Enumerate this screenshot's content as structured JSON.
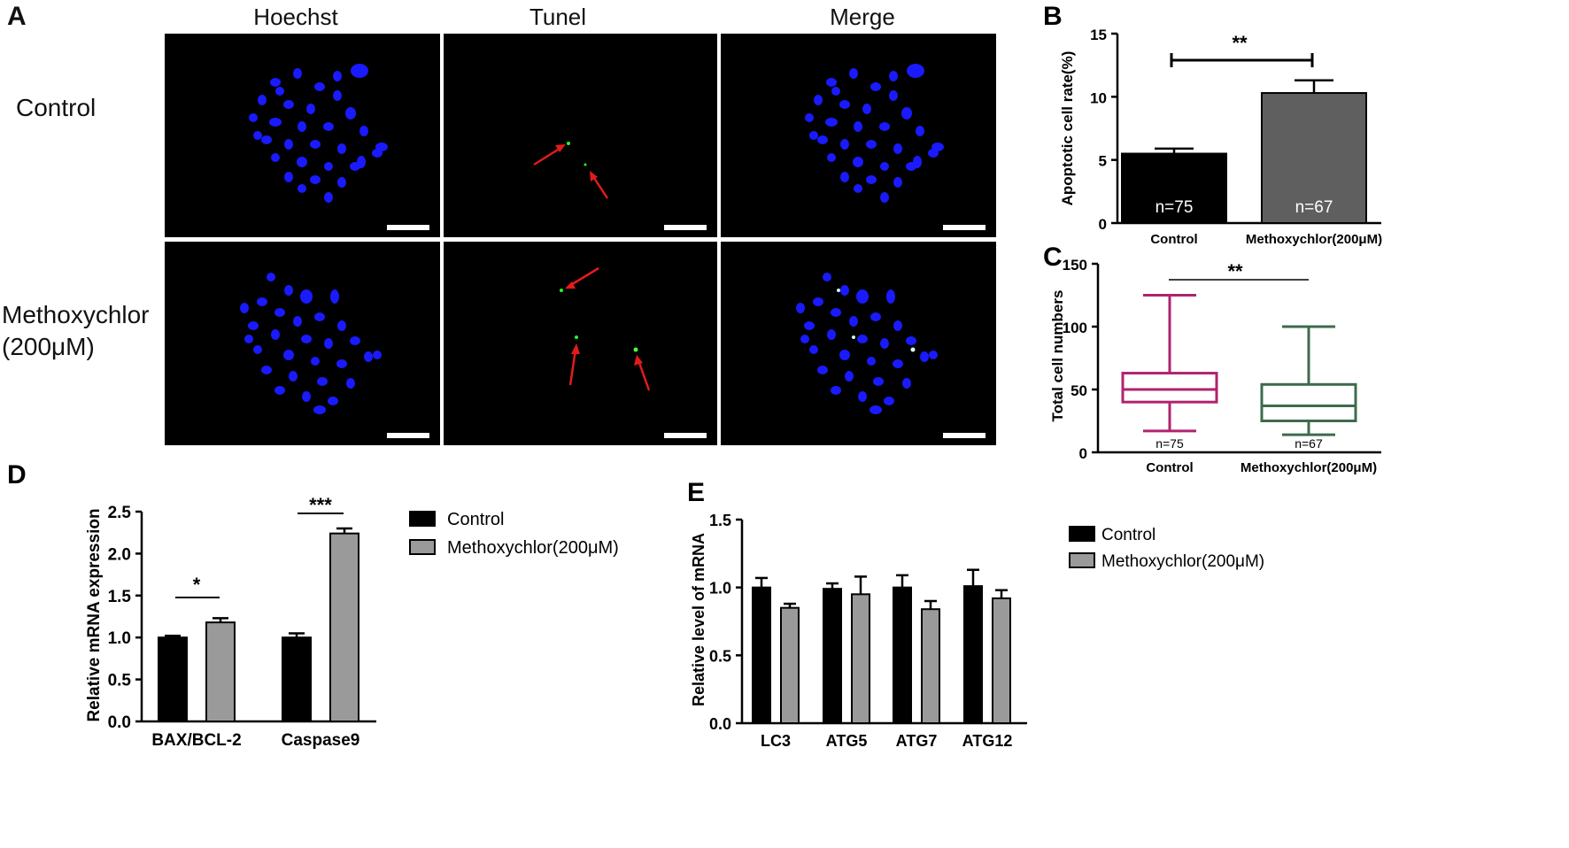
{
  "panelA": {
    "letter": "A",
    "columns": [
      "Hoechst",
      "Tunel",
      "Merge"
    ],
    "rows": [
      "Control",
      "Methoxychlor\n(200μM)"
    ]
  },
  "chart_data": [
    {
      "panel": "B",
      "type": "bar",
      "categories": [
        "Control",
        "Methoxychlor(200μM)"
      ],
      "values": [
        5.5,
        10.3
      ],
      "errors": [
        0.4,
        1.0
      ],
      "bar_labels": [
        "n=75",
        "n=67"
      ],
      "ylabel": "Apoptotic cell rate(%)",
      "ylim": [
        0,
        15
      ],
      "yticks": [
        0,
        5,
        10,
        15
      ],
      "significance": "**",
      "colors": [
        "#000000",
        "#5f5f5f"
      ]
    },
    {
      "panel": "C",
      "type": "box",
      "categories": [
        "Control",
        "Methoxychlor(200μM)"
      ],
      "boxes": [
        {
          "min": 17,
          "q1": 40,
          "median": 50,
          "q3": 63,
          "max": 125,
          "n_label": "n=75",
          "color": "#b0236f"
        },
        {
          "min": 14,
          "q1": 25,
          "median": 37,
          "q3": 54,
          "max": 100,
          "n_label": "n=67",
          "color": "#3d6b4c"
        }
      ],
      "ylabel": "Total cell numbers",
      "ylim": [
        0,
        150
      ],
      "yticks": [
        0,
        50,
        100,
        150
      ],
      "significance": "**"
    },
    {
      "panel": "D",
      "type": "bar",
      "categories": [
        "BAX/BCL-2",
        "Caspase9"
      ],
      "series": [
        {
          "name": "Control",
          "values": [
            1.0,
            1.0
          ],
          "errors": [
            0.02,
            0.05
          ],
          "color": "#000000"
        },
        {
          "name": "Methoxychlor(200μM)",
          "values": [
            1.18,
            2.24
          ],
          "errors": [
            0.05,
            0.06
          ],
          "color": "#9a9a9a"
        }
      ],
      "ylabel": "Relative mRNA expression",
      "ylim": [
        0,
        2.5
      ],
      "yticks": [
        "0.0",
        "0.5",
        "1.0",
        "1.5",
        "2.0",
        "2.5"
      ],
      "significance": [
        "*",
        "***"
      ]
    },
    {
      "panel": "E",
      "type": "bar",
      "categories": [
        "LC3",
        "ATG5",
        "ATG7",
        "ATG12"
      ],
      "series": [
        {
          "name": "Control",
          "values": [
            1.0,
            0.99,
            1.0,
            1.01
          ],
          "errors": [
            0.07,
            0.04,
            0.09,
            0.12
          ],
          "color": "#000000"
        },
        {
          "name": "Methoxychlor(200μM)",
          "values": [
            0.85,
            0.95,
            0.84,
            0.92
          ],
          "errors": [
            0.03,
            0.13,
            0.06,
            0.06
          ],
          "color": "#9a9a9a"
        }
      ],
      "ylabel": "Relative level of mRNA",
      "ylim": [
        0,
        1.5
      ],
      "yticks": [
        "0.0",
        "0.5",
        "1.0",
        "1.5"
      ]
    }
  ]
}
